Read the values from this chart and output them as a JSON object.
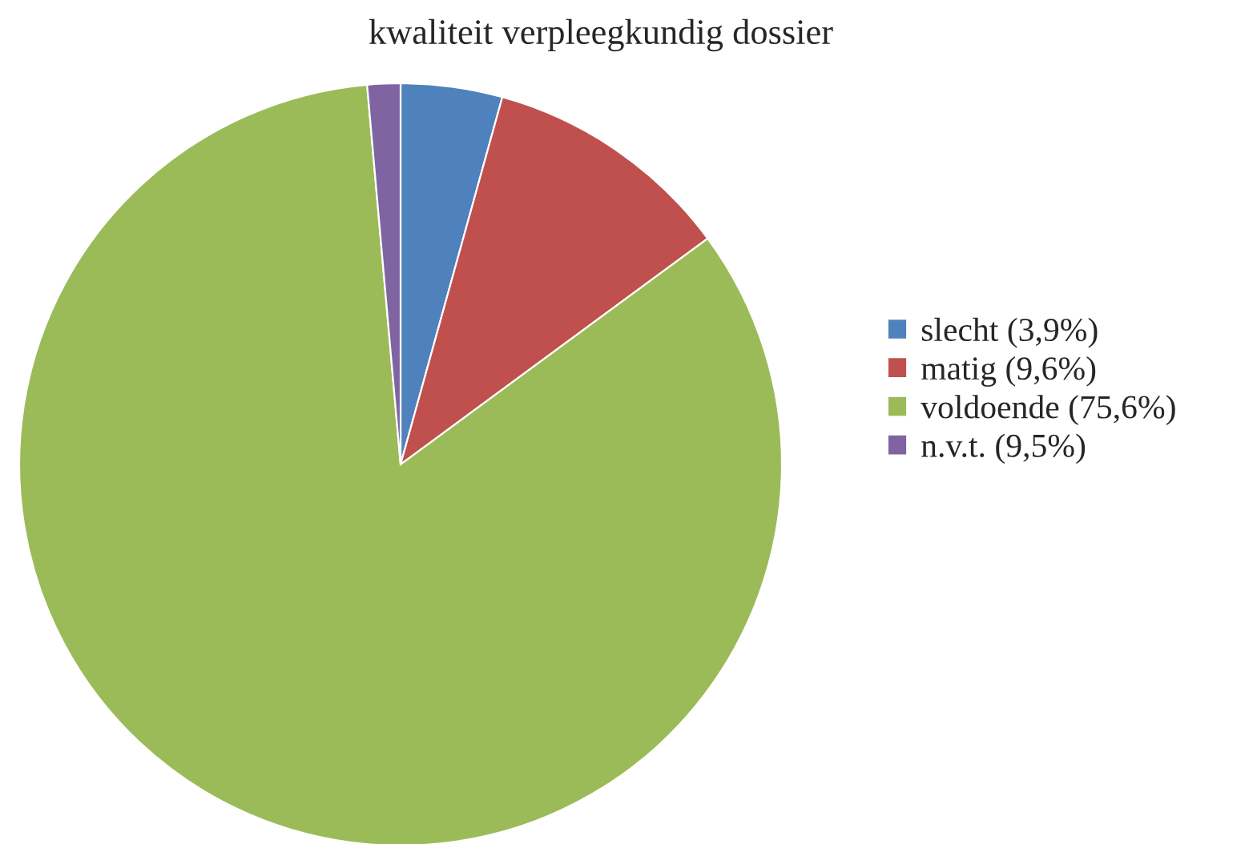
{
  "chart_data": {
    "type": "pie",
    "title": "kwaliteit verpleegkundig dossier",
    "categories": [
      "slecht (3,9%)",
      "matig (9,6%)",
      "voldoende (75,6%)",
      "n.v.t. (9,5%)"
    ],
    "values": [
      4.3,
      10.6,
      83.7,
      1.4
    ],
    "colors": [
      "#4f81bd",
      "#c0504d",
      "#9bbb59",
      "#8064a2"
    ],
    "legend": "right"
  }
}
